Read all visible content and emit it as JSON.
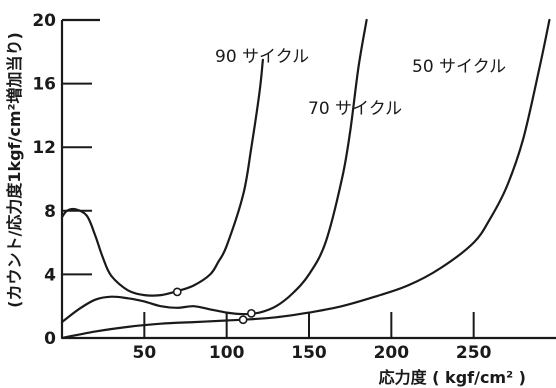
{
  "chart_data": {
    "type": "line",
    "xlabel": "応力度 ( kgf/cm² )",
    "ylabel": "(カウント/応力度1kgf/cm²増加当り)",
    "xlim": [
      0,
      300
    ],
    "ylim": [
      0,
      20
    ],
    "x_ticks": [
      50,
      100,
      150,
      200,
      250
    ],
    "y_ticks": [
      0,
      4,
      8,
      12,
      16,
      20
    ],
    "grid": false,
    "series": [
      {
        "name": "90 サイクル",
        "x": [
          0,
          3,
          8,
          15,
          20,
          25,
          30,
          40,
          50,
          60,
          70,
          80,
          90,
          95,
          100,
          110,
          115,
          120,
          122
        ],
        "y": [
          7.6,
          8.0,
          8.1,
          7.7,
          6.5,
          5.0,
          3.9,
          3.0,
          2.7,
          2.7,
          2.95,
          3.3,
          4.0,
          4.8,
          5.8,
          9.0,
          12.0,
          15.5,
          17.5
        ],
        "marker": {
          "x": 70,
          "y": 2.9
        }
      },
      {
        "name": "70 サイクル",
        "x": [
          0,
          10,
          20,
          30,
          40,
          50,
          60,
          70,
          80,
          90,
          100,
          110,
          120,
          130,
          140,
          150,
          160,
          170,
          175,
          180,
          185
        ],
        "y": [
          1.0,
          1.8,
          2.4,
          2.6,
          2.5,
          2.3,
          2.0,
          1.9,
          2.0,
          1.8,
          1.6,
          1.5,
          1.6,
          2.0,
          2.8,
          4.0,
          6.0,
          10.0,
          13.0,
          17.0,
          20.0
        ],
        "marker": {
          "x": 115,
          "y": 1.55
        }
      },
      {
        "name": "50 サイクル",
        "x": [
          0,
          20,
          40,
          60,
          80,
          100,
          110,
          130,
          150,
          170,
          190,
          210,
          230,
          250,
          260,
          270,
          280,
          290,
          296
        ],
        "y": [
          0,
          0.4,
          0.7,
          0.9,
          1.0,
          1.1,
          1.15,
          1.3,
          1.6,
          2.0,
          2.6,
          3.3,
          4.4,
          6.0,
          7.5,
          9.5,
          12.5,
          17.0,
          20.0
        ],
        "marker": {
          "x": 110,
          "y": 1.15
        }
      }
    ]
  }
}
